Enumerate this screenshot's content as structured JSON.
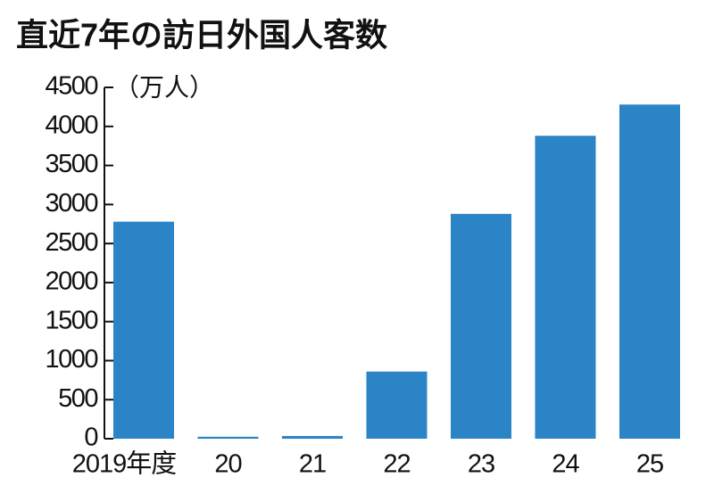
{
  "chart_data": {
    "type": "bar",
    "title": "直近7年の訪日外国人客数",
    "unit": "（万人）",
    "categories": [
      "2019年度",
      "20",
      "21",
      "22",
      "23",
      "24",
      "25"
    ],
    "values": [
      2780,
      25,
      35,
      860,
      2880,
      3880,
      4280
    ],
    "color": "#2a84c6",
    "ylim": [
      0,
      4500
    ],
    "yticks": [
      0,
      500,
      1000,
      1500,
      2000,
      2500,
      3000,
      3500,
      4000,
      4500
    ]
  }
}
